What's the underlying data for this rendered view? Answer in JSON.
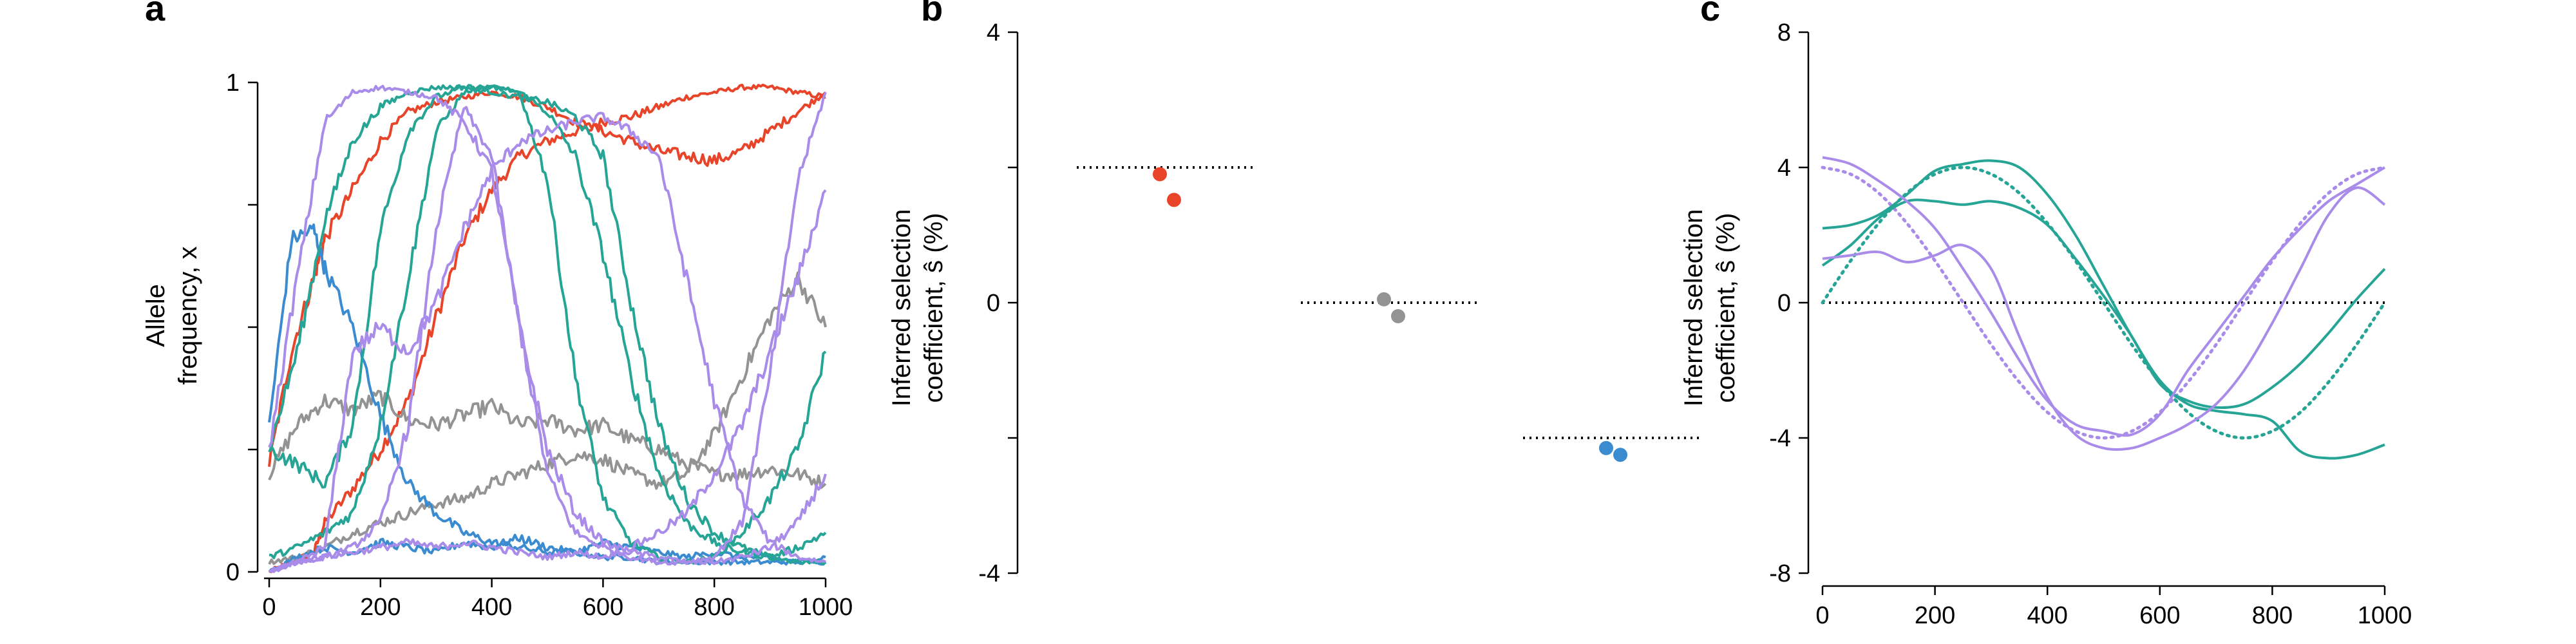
{
  "colors": {
    "red": "#e8442a",
    "gray": "#939393",
    "blue": "#3b8bd0",
    "teal": "#26a596",
    "purple": "#a98be9"
  },
  "panels": {
    "a": {
      "letter": "a",
      "ylabel_line1": "Allele",
      "ylabel_line2": "frequency, x"
    },
    "b": {
      "letter": "b",
      "ylabel_line1": "Inferred selection",
      "ylabel_line2": "coefficient, ŝ (%)"
    },
    "c": {
      "letter": "c",
      "ylabel_line1": "Inferred selection",
      "ylabel_line2": "coefficient, ŝ (%)"
    }
  },
  "chart_data": [
    {
      "panel": "a",
      "type": "line",
      "xlim": [
        0,
        1000
      ],
      "ylim": [
        0,
        1
      ],
      "x_ticks": [
        0,
        200,
        400,
        600,
        800,
        1000
      ],
      "y_ticks": [
        0,
        1
      ],
      "y_minor_ticks": [
        0.25,
        0.5,
        0.75
      ],
      "xlabel": "",
      "series": [
        {
          "color": "red",
          "x": [
            0,
            40,
            80,
            100,
            150,
            200,
            250,
            300,
            350,
            400,
            450,
            500,
            550,
            600,
            650,
            700,
            750,
            800,
            850,
            900,
            950,
            1000
          ],
          "y": [
            0.0,
            0.02,
            0.04,
            0.1,
            0.17,
            0.25,
            0.35,
            0.52,
            0.68,
            0.78,
            0.85,
            0.88,
            0.9,
            0.92,
            0.93,
            0.95,
            0.97,
            0.98,
            0.99,
            0.99,
            0.98,
            0.97
          ]
        },
        {
          "color": "red",
          "x": [
            0,
            40,
            80,
            100,
            150,
            200,
            250,
            300,
            350,
            400,
            450,
            500,
            550,
            600,
            650,
            700,
            750,
            800,
            850,
            900,
            950,
            1000
          ],
          "y": [
            0.22,
            0.45,
            0.6,
            0.68,
            0.78,
            0.88,
            0.94,
            0.96,
            0.97,
            0.98,
            0.97,
            0.95,
            0.92,
            0.9,
            0.88,
            0.86,
            0.85,
            0.84,
            0.86,
            0.9,
            0.94,
            0.98
          ]
        },
        {
          "color": "gray",
          "x": [
            0,
            50,
            100,
            150,
            200,
            250,
            300,
            350,
            400,
            450,
            500,
            550,
            600,
            650,
            700,
            750,
            800,
            850,
            900,
            950,
            1000
          ],
          "y": [
            0.2,
            0.3,
            0.35,
            0.33,
            0.36,
            0.31,
            0.3,
            0.32,
            0.34,
            0.3,
            0.31,
            0.29,
            0.3,
            0.27,
            0.25,
            0.22,
            0.2,
            0.2,
            0.21,
            0.2,
            0.18
          ]
        },
        {
          "color": "gray",
          "x": [
            0,
            50,
            100,
            150,
            200,
            250,
            300,
            350,
            400,
            450,
            500,
            550,
            600,
            650,
            700,
            750,
            800,
            850,
            900,
            950,
            1000
          ],
          "y": [
            0.02,
            0.03,
            0.05,
            0.08,
            0.1,
            0.12,
            0.14,
            0.15,
            0.18,
            0.2,
            0.22,
            0.24,
            0.23,
            0.2,
            0.18,
            0.2,
            0.28,
            0.4,
            0.52,
            0.6,
            0.5
          ]
        },
        {
          "color": "blue",
          "x": [
            0,
            40,
            80,
            100,
            150,
            200,
            250,
            300,
            350,
            400,
            450,
            500,
            550,
            600,
            650,
            700,
            750,
            800,
            850,
            900,
            950,
            1000
          ],
          "y": [
            0.3,
            0.68,
            0.7,
            0.62,
            0.5,
            0.32,
            0.18,
            0.12,
            0.08,
            0.06,
            0.05,
            0.04,
            0.04,
            0.03,
            0.03,
            0.02,
            0.02,
            0.02,
            0.02,
            0.02,
            0.02,
            0.02
          ]
        },
        {
          "color": "blue",
          "x": [
            0,
            50,
            100,
            150,
            200,
            250,
            300,
            350,
            400,
            450,
            500,
            550,
            600,
            650,
            700,
            750,
            800,
            850,
            900,
            950,
            1000
          ],
          "y": [
            0.0,
            0.03,
            0.05,
            0.04,
            0.06,
            0.05,
            0.04,
            0.06,
            0.05,
            0.07,
            0.05,
            0.04,
            0.06,
            0.05,
            0.04,
            0.03,
            0.04,
            0.03,
            0.03,
            0.02,
            0.03
          ]
        },
        {
          "color": "teal",
          "x": [
            0,
            50,
            100,
            150,
            200,
            250,
            300,
            350,
            400,
            450,
            500,
            550,
            600,
            650,
            700,
            750,
            800,
            850,
            900,
            950,
            1000
          ],
          "y": [
            0.25,
            0.45,
            0.72,
            0.88,
            0.95,
            0.98,
            0.99,
            0.99,
            0.98,
            0.97,
            0.96,
            0.93,
            0.85,
            0.55,
            0.3,
            0.15,
            0.08,
            0.05,
            0.03,
            0.02,
            0.02
          ]
        },
        {
          "color": "teal",
          "x": [
            0,
            50,
            100,
            150,
            200,
            250,
            300,
            350,
            400,
            450,
            500,
            550,
            600,
            650,
            700,
            750,
            800,
            850,
            900,
            950,
            1000
          ],
          "y": [
            0.25,
            0.22,
            0.18,
            0.3,
            0.7,
            0.9,
            0.97,
            0.99,
            0.99,
            0.98,
            0.94,
            0.85,
            0.65,
            0.4,
            0.2,
            0.1,
            0.06,
            0.04,
            0.03,
            0.05,
            0.08
          ]
        },
        {
          "color": "teal",
          "x": [
            0,
            50,
            100,
            150,
            200,
            250,
            300,
            350,
            400,
            450,
            500,
            550,
            600,
            650,
            700,
            750,
            800,
            850,
            900,
            950,
            1000
          ],
          "y": [
            0.03,
            0.05,
            0.08,
            0.12,
            0.3,
            0.6,
            0.9,
            0.98,
            0.99,
            0.98,
            0.8,
            0.4,
            0.15,
            0.06,
            0.03,
            0.02,
            0.03,
            0.08,
            0.15,
            0.25,
            0.45
          ]
        },
        {
          "color": "purple",
          "x": [
            0,
            50,
            100,
            150,
            200,
            250,
            300,
            350,
            400,
            450,
            500,
            550,
            600,
            650,
            700,
            750,
            800,
            850,
            900,
            950,
            1000
          ],
          "y": [
            0.25,
            0.6,
            0.92,
            0.98,
            0.99,
            0.98,
            0.97,
            0.92,
            0.82,
            0.5,
            0.25,
            0.12,
            0.06,
            0.04,
            0.03,
            0.02,
            0.02,
            0.03,
            0.05,
            0.1,
            0.2
          ]
        },
        {
          "color": "purple",
          "x": [
            0,
            50,
            100,
            150,
            200,
            250,
            300,
            350,
            400,
            450,
            500,
            550,
            600,
            650,
            700,
            750,
            800,
            850,
            900,
            950,
            1000
          ],
          "y": [
            0.0,
            0.02,
            0.05,
            0.45,
            0.5,
            0.45,
            0.55,
            0.7,
            0.82,
            0.88,
            0.9,
            0.92,
            0.93,
            0.9,
            0.85,
            0.6,
            0.35,
            0.15,
            0.06,
            0.03,
            0.02
          ]
        },
        {
          "color": "purple",
          "x": [
            0,
            50,
            100,
            150,
            200,
            250,
            300,
            350,
            400,
            450,
            500,
            550,
            600,
            650,
            700,
            750,
            800,
            850,
            900,
            950,
            1000
          ],
          "y": [
            0.0,
            0.02,
            0.03,
            0.05,
            0.1,
            0.3,
            0.7,
            0.95,
            0.85,
            0.5,
            0.2,
            0.08,
            0.05,
            0.03,
            0.02,
            0.02,
            0.03,
            0.1,
            0.4,
            0.8,
            0.98
          ]
        },
        {
          "color": "purple",
          "x": [
            0,
            50,
            100,
            150,
            200,
            250,
            300,
            350,
            400,
            450,
            500,
            550,
            600,
            650,
            700,
            750,
            800,
            850,
            900,
            950,
            1000
          ],
          "y": [
            0.0,
            0.02,
            0.03,
            0.04,
            0.05,
            0.06,
            0.05,
            0.06,
            0.05,
            0.04,
            0.03,
            0.04,
            0.03,
            0.05,
            0.08,
            0.12,
            0.2,
            0.3,
            0.45,
            0.6,
            0.78
          ]
        }
      ]
    },
    {
      "panel": "b",
      "type": "scatter",
      "ylim": [
        -4,
        4
      ],
      "y_ticks": [
        -4,
        0,
        4
      ],
      "y_minor_ticks": [
        -2,
        2
      ],
      "true_values": [
        {
          "color": "red",
          "value": 2
        },
        {
          "color": "gray",
          "value": 0
        },
        {
          "color": "blue",
          "value": -2
        }
      ],
      "points": [
        {
          "color": "red",
          "group": 0,
          "offset": -0.05,
          "value": 1.9
        },
        {
          "color": "red",
          "group": 0,
          "offset": 0.05,
          "value": 1.52
        },
        {
          "color": "gray",
          "group": 1,
          "offset": -0.05,
          "value": 0.05
        },
        {
          "color": "gray",
          "group": 1,
          "offset": 0.05,
          "value": -0.2
        },
        {
          "color": "blue",
          "group": 2,
          "offset": -0.05,
          "value": -2.15
        },
        {
          "color": "blue",
          "group": 2,
          "offset": 0.05,
          "value": -2.25
        }
      ]
    },
    {
      "panel": "c",
      "type": "line",
      "xlim": [
        0,
        1000
      ],
      "ylim": [
        -8,
        8
      ],
      "x_ticks": [
        0,
        200,
        400,
        600,
        800,
        1000
      ],
      "y_ticks": [
        -8,
        -4,
        0,
        4,
        8
      ],
      "true_series": [
        {
          "color": "teal",
          "kind": "true",
          "x": [
            0,
            50,
            100,
            150,
            200,
            250,
            300,
            350,
            400,
            450,
            500,
            550,
            600,
            650,
            700,
            750,
            800,
            850,
            900,
            950,
            1000
          ],
          "y": [
            0,
            1.24,
            2.35,
            3.24,
            3.8,
            4.0,
            3.8,
            3.24,
            2.35,
            1.24,
            0,
            -1.24,
            -2.35,
            -3.24,
            -3.8,
            -4.0,
            -3.8,
            -3.24,
            -2.35,
            -1.24,
            0
          ]
        },
        {
          "color": "purple",
          "kind": "true",
          "x": [
            0,
            50,
            100,
            150,
            200,
            250,
            300,
            350,
            400,
            450,
            500,
            550,
            600,
            650,
            700,
            750,
            800,
            850,
            900,
            950,
            1000
          ],
          "y": [
            4.0,
            3.8,
            3.24,
            2.35,
            1.24,
            0,
            -1.24,
            -2.35,
            -3.24,
            -3.8,
            -4.0,
            -3.8,
            -3.24,
            -2.35,
            -1.24,
            0,
            1.24,
            2.35,
            3.24,
            3.8,
            4.0
          ]
        }
      ],
      "inferred_series": [
        {
          "color": "teal",
          "kind": "inferred",
          "x": [
            0,
            50,
            100,
            150,
            200,
            250,
            300,
            350,
            400,
            450,
            500,
            550,
            600,
            650,
            700,
            750,
            800,
            850,
            900,
            950,
            1000
          ],
          "y": [
            2.2,
            2.3,
            2.6,
            3.2,
            3.9,
            4.1,
            4.2,
            4.0,
            3.2,
            2.0,
            0.5,
            -1.0,
            -2.3,
            -3.0,
            -3.2,
            -3.3,
            -3.5,
            -4.4,
            -4.6,
            -4.5,
            -4.2
          ]
        },
        {
          "color": "teal",
          "kind": "inferred",
          "x": [
            0,
            50,
            100,
            150,
            200,
            250,
            300,
            350,
            400,
            450,
            500,
            550,
            600,
            650,
            700,
            750,
            800,
            850,
            900,
            950,
            1000
          ],
          "y": [
            1.1,
            1.7,
            2.5,
            3.0,
            3.0,
            2.9,
            3.0,
            2.8,
            2.3,
            1.3,
            0.2,
            -1.0,
            -2.4,
            -2.9,
            -3.1,
            -3.0,
            -2.5,
            -1.8,
            -0.9,
            0.1,
            1.0
          ]
        },
        {
          "color": "purple",
          "kind": "inferred",
          "x": [
            0,
            50,
            100,
            150,
            200,
            250,
            300,
            350,
            400,
            450,
            500,
            550,
            600,
            650,
            700,
            750,
            800,
            850,
            900,
            950,
            1000
          ],
          "y": [
            4.3,
            4.1,
            3.6,
            3.0,
            2.2,
            1.0,
            -0.3,
            -1.7,
            -2.9,
            -3.6,
            -3.8,
            -3.9,
            -3.3,
            -2.0,
            -0.9,
            0.2,
            1.3,
            2.2,
            3.0,
            3.5,
            4.0
          ]
        },
        {
          "color": "purple",
          "kind": "inferred",
          "x": [
            0,
            50,
            100,
            150,
            200,
            250,
            300,
            350,
            400,
            450,
            500,
            550,
            600,
            650,
            700,
            750,
            800,
            850,
            900,
            950,
            1000
          ],
          "y": [
            1.3,
            1.4,
            1.5,
            1.2,
            1.4,
            1.7,
            1.0,
            -1.0,
            -2.8,
            -3.9,
            -4.3,
            -4.3,
            -4.0,
            -3.6,
            -3.0,
            -2.0,
            -0.6,
            1.0,
            2.6,
            3.4,
            2.9
          ]
        }
      ],
      "zero_line": 0
    }
  ]
}
